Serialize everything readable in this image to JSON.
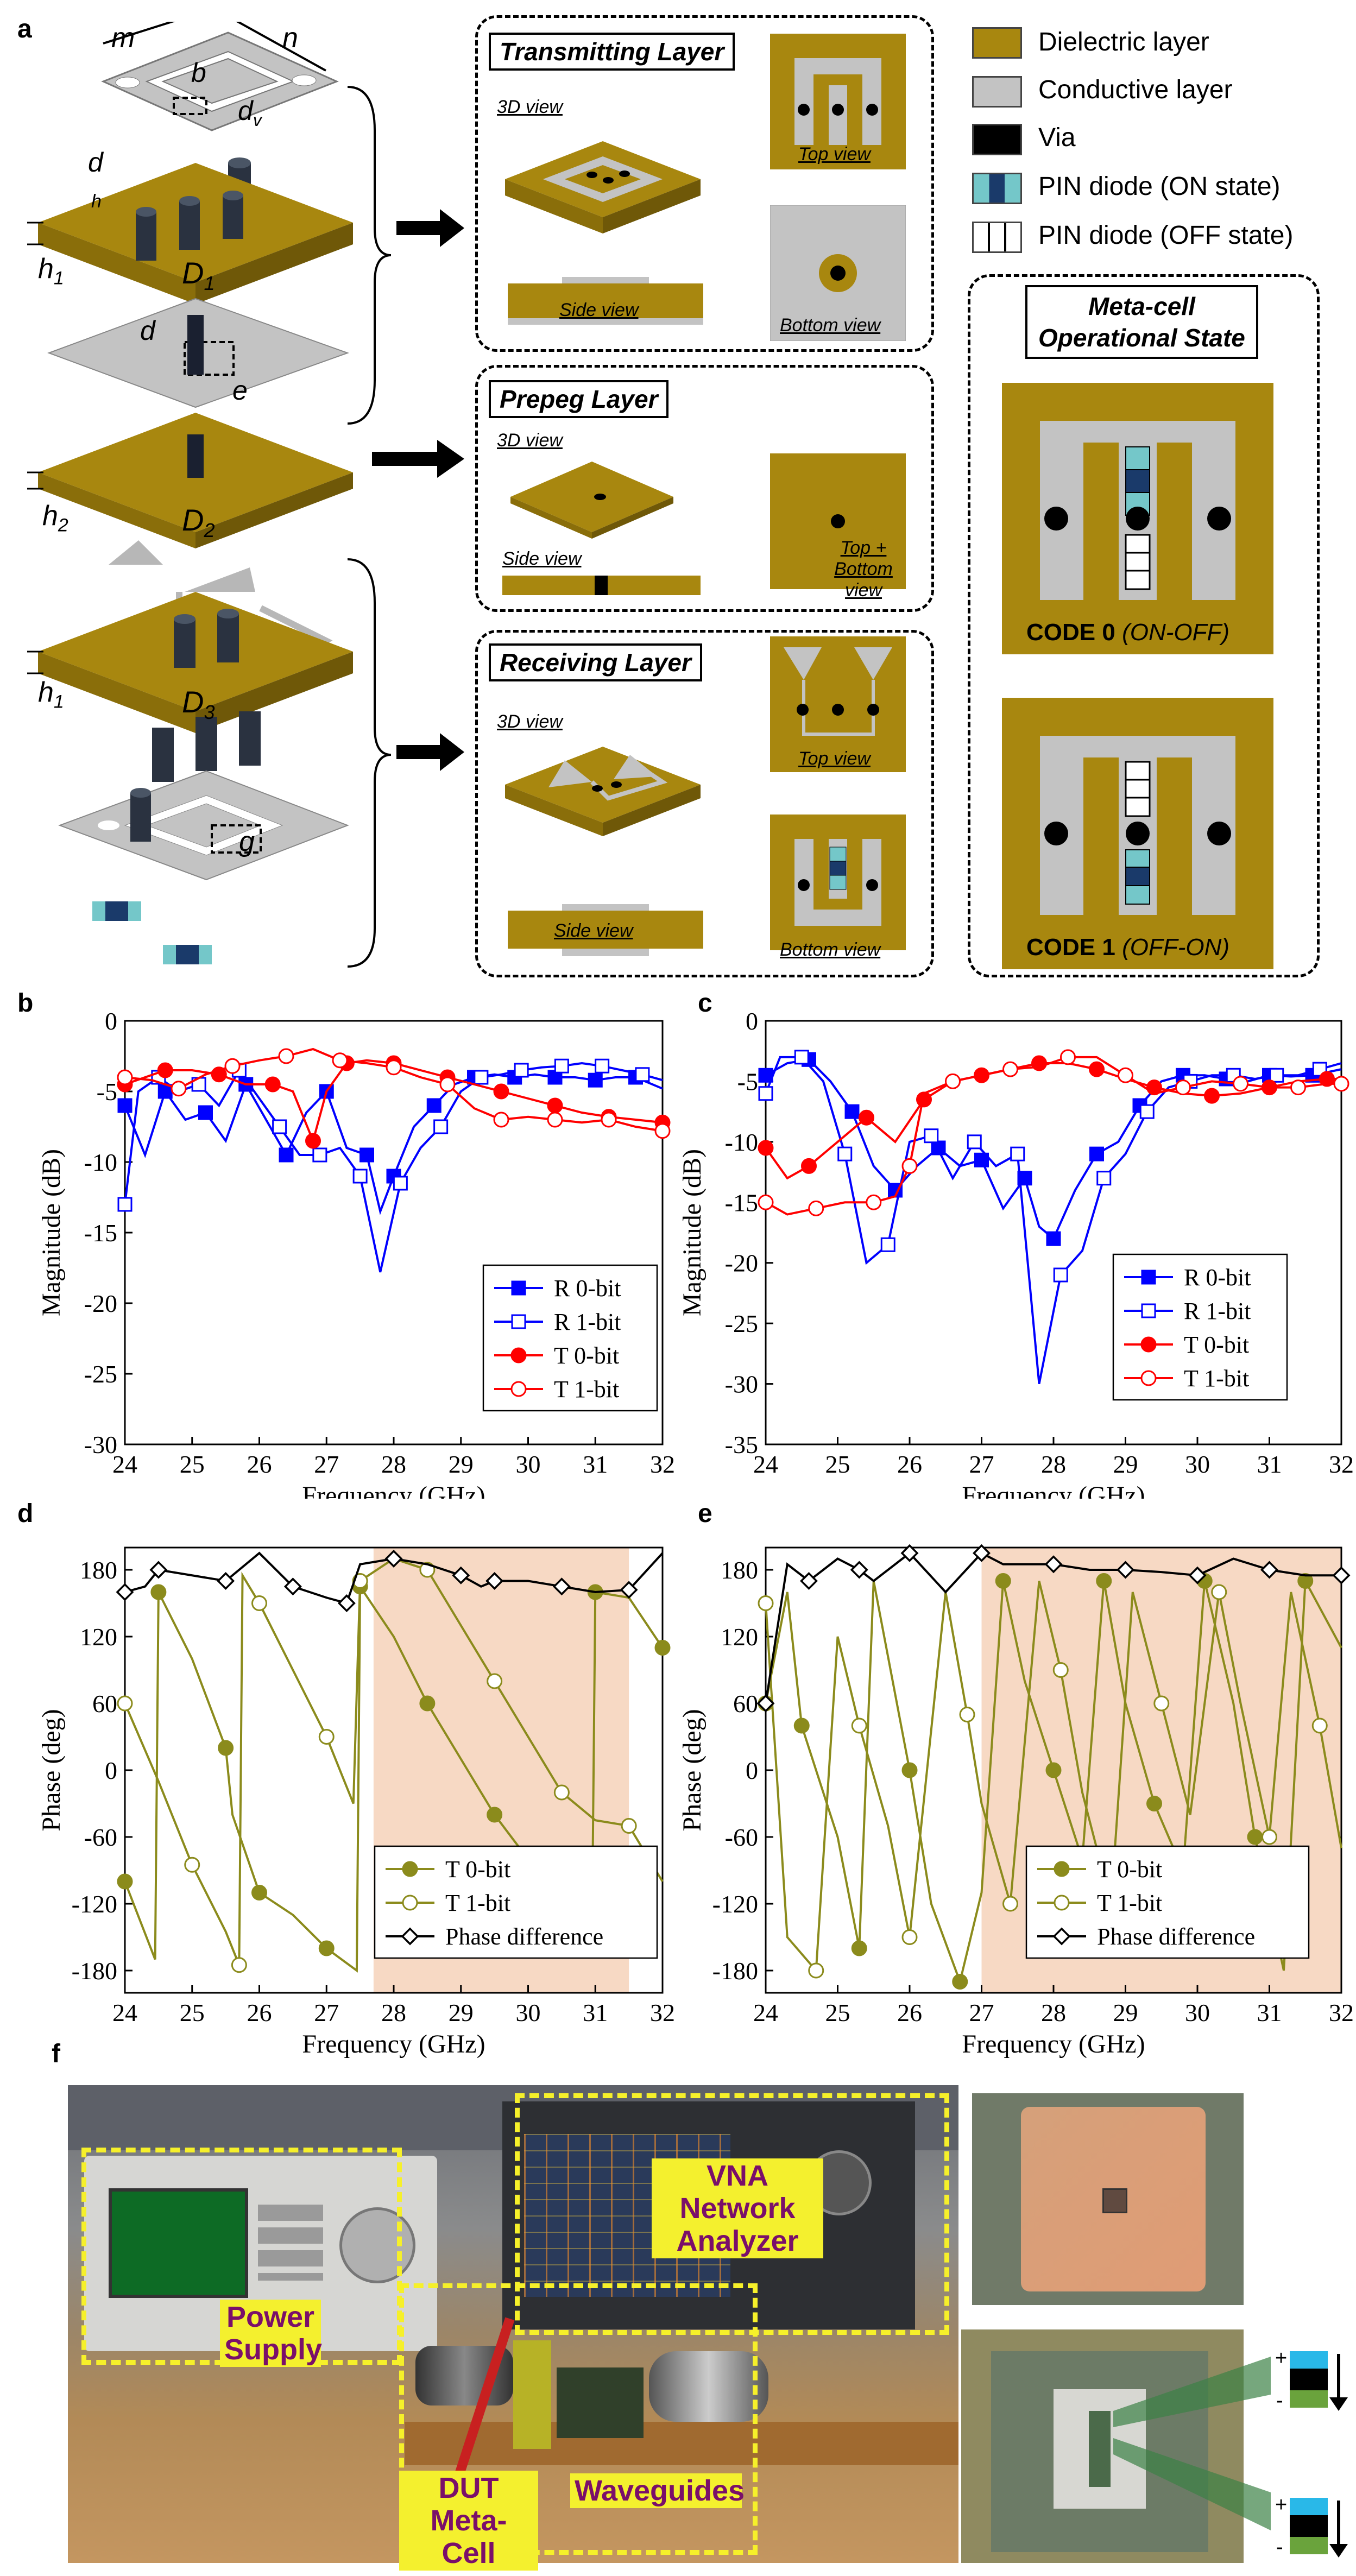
{
  "panel_labels": {
    "a": "a",
    "b": "b",
    "c": "c",
    "d": "d",
    "e": "e",
    "f": "f"
  },
  "colors": {
    "dielectric": "#a8870f",
    "conductive": "#c0c0c0",
    "via": "#000000",
    "diode_on": "#74c7c9",
    "diode_on_mid": "#1a3a6a",
    "red": "#ff0000",
    "blue": "#0000ff",
    "olive": "#8b8b1c",
    "shade": "#f7d9c4",
    "yellow": "#f6f02a",
    "magenta": "#7a0f6a"
  },
  "stack": {
    "dims": {
      "m": "m",
      "n": "n",
      "b": "b",
      "dv": "d",
      "dv_sub": "v",
      "d1": "d",
      "h": "h",
      "h1_top": "h",
      "h1_top_sub": "1",
      "D1": "D",
      "D1_sub": "1",
      "d2": "d",
      "e": "e",
      "h2": "h",
      "h2_sub": "2",
      "D2": "D",
      "D2_sub": "2",
      "h1_bot": "h",
      "h1_bot_sub": "1",
      "D3": "D",
      "D3_sub": "3",
      "g": "g"
    }
  },
  "views": {
    "transmitting": {
      "title": "Transmitting Layer",
      "v3d": "3D view",
      "top": "Top view",
      "side": "Side view",
      "bottom": "Bottom view"
    },
    "prepeg": {
      "title": "Prepeg Layer",
      "v3d": "3D view",
      "side": "Side view",
      "topbottom": "Top + Bottom view"
    },
    "receiving": {
      "title": "Receiving Layer",
      "v3d": "3D view",
      "top": "Top view",
      "side": "Side view",
      "bottom": "Bottom view"
    }
  },
  "legend": [
    {
      "label": "Dielectric layer"
    },
    {
      "label": "Conductive layer"
    },
    {
      "label": "Via"
    },
    {
      "label": "PIN diode (ON state)"
    },
    {
      "label": "PIN diode (OFF state)"
    }
  ],
  "metacell": {
    "title1": "Meta-cell",
    "title2": "Operational State",
    "code0": "CODE 0",
    "code0_state": "(ON-OFF)",
    "code1": "CODE 1",
    "code1_state": "(OFF-ON)"
  },
  "photo": {
    "power": "Power Supply",
    "vna": "VNA Network Analyzer",
    "dut": "DUT Meta-Cell",
    "waveguides": "Waveguides",
    "plus1": "+",
    "minus1": "-",
    "plus2": "+",
    "minus2": "-"
  },
  "chart_data": [
    {
      "id": "b",
      "type": "line",
      "xlabel": "Frequency (GHz)",
      "ylabel": "Magnitude (dB)",
      "xlim": [
        24,
        32
      ],
      "ylim": [
        -30,
        0
      ],
      "xticks": [
        24,
        25,
        26,
        27,
        28,
        29,
        30,
        31,
        32
      ],
      "yticks": [
        0,
        -5,
        -10,
        -15,
        -20,
        -25,
        -30
      ],
      "legend": "bottom-right",
      "series": [
        {
          "name": "R 0-bit",
          "color": "#0000ff",
          "marker": "square-filled",
          "x": [
            24,
            24.3,
            24.6,
            24.9,
            25.2,
            25.5,
            25.8,
            26.1,
            26.4,
            26.7,
            27,
            27.3,
            27.6,
            27.8,
            28,
            28.3,
            28.6,
            28.9,
            29.2,
            29.5,
            29.8,
            30.1,
            30.4,
            30.7,
            31,
            31.3,
            31.6,
            32
          ],
          "y": [
            -6,
            -9.5,
            -5,
            -7,
            -6.5,
            -8.5,
            -4.5,
            -7,
            -9.5,
            -6.5,
            -5,
            -9,
            -9.5,
            -13.5,
            -11,
            -7.5,
            -6,
            -4.5,
            -4,
            -3.8,
            -4,
            -3.8,
            -4,
            -4,
            -4.2,
            -4,
            -4,
            -4.8
          ]
        },
        {
          "name": "R 1-bit",
          "color": "#0000ff",
          "marker": "square-open",
          "x": [
            24,
            24.2,
            24.5,
            24.8,
            25.1,
            25.4,
            25.7,
            26,
            26.3,
            26.6,
            26.9,
            27.2,
            27.5,
            27.8,
            28.1,
            28.4,
            28.7,
            29,
            29.3,
            29.6,
            29.9,
            30.2,
            30.5,
            30.8,
            31.1,
            31.4,
            31.7,
            32
          ],
          "y": [
            -13,
            -5,
            -4,
            -5,
            -4.5,
            -6,
            -3.5,
            -5.5,
            -7.5,
            -9.5,
            -9.5,
            -9,
            -11,
            -17.8,
            -11.5,
            -9,
            -7.5,
            -5,
            -4,
            -3.8,
            -3.5,
            -3.3,
            -3.2,
            -3,
            -3.2,
            -3.5,
            -3.8,
            -4.2
          ]
        },
        {
          "name": "T 0-bit",
          "color": "#ff0000",
          "marker": "circle-filled",
          "x": [
            24,
            24.3,
            24.6,
            25,
            25.4,
            25.8,
            26.2,
            26.5,
            26.8,
            27,
            27.3,
            27.6,
            28,
            28.4,
            28.8,
            29.2,
            29.6,
            30,
            30.4,
            30.8,
            31.2,
            31.6,
            32
          ],
          "y": [
            -4.5,
            -4,
            -3.5,
            -3.5,
            -3.8,
            -4.5,
            -4.5,
            -5,
            -8.5,
            -5,
            -3,
            -2.8,
            -3,
            -3.5,
            -4,
            -4.5,
            -5,
            -5.5,
            -6,
            -6.5,
            -6.8,
            -7,
            -7.2
          ]
        },
        {
          "name": "T 1-bit",
          "color": "#ff0000",
          "marker": "circle-open",
          "x": [
            24,
            24.4,
            24.8,
            25.2,
            25.6,
            26,
            26.4,
            26.8,
            27.2,
            27.6,
            28,
            28.4,
            28.8,
            29.2,
            29.6,
            30,
            30.4,
            30.8,
            31.2,
            31.6,
            32
          ],
          "y": [
            -4,
            -4.2,
            -4.8,
            -3.8,
            -3.2,
            -2.8,
            -2.5,
            -2,
            -2.8,
            -3,
            -3.3,
            -4,
            -4.5,
            -6.2,
            -7,
            -6.8,
            -7,
            -7.2,
            -7,
            -7.5,
            -7.8
          ]
        }
      ]
    },
    {
      "id": "c",
      "type": "line",
      "xlabel": "Frequency (GHz)",
      "ylabel": "Magnitude (dB)",
      "xlim": [
        24,
        32
      ],
      "ylim": [
        -35,
        0
      ],
      "xticks": [
        24,
        25,
        26,
        27,
        28,
        29,
        30,
        31,
        32
      ],
      "yticks": [
        0,
        -5,
        -10,
        -15,
        -20,
        -25,
        -30,
        -35
      ],
      "legend": "bottom-right",
      "series": [
        {
          "name": "R 0-bit",
          "color": "#0000ff",
          "marker": "square-filled",
          "x": [
            24,
            24.3,
            24.6,
            24.9,
            25.2,
            25.5,
            25.8,
            26.1,
            26.4,
            26.7,
            27,
            27.3,
            27.6,
            27.8,
            28,
            28.3,
            28.6,
            28.9,
            29.2,
            29.5,
            29.8,
            30.1,
            30.4,
            30.7,
            31,
            31.3,
            31.6,
            32
          ],
          "y": [
            -4.5,
            -3.5,
            -3.2,
            -5,
            -7.5,
            -12,
            -14,
            -12,
            -10.5,
            -12,
            -11.5,
            -15.5,
            -13,
            -17,
            -18,
            -14,
            -11,
            -10,
            -7,
            -5,
            -4.5,
            -4.5,
            -4.8,
            -5,
            -4.5,
            -4.6,
            -4.5,
            -4
          ]
        },
        {
          "name": "R 1-bit",
          "color": "#0000ff",
          "marker": "square-open",
          "x": [
            24,
            24.2,
            24.5,
            24.8,
            25.1,
            25.4,
            25.7,
            26,
            26.3,
            26.6,
            26.9,
            27.2,
            27.5,
            27.8,
            28.1,
            28.4,
            28.7,
            29,
            29.3,
            29.6,
            29.9,
            30.2,
            30.5,
            30.8,
            31.1,
            31.4,
            31.7,
            32
          ],
          "y": [
            -6,
            -3,
            -3,
            -5,
            -11,
            -20,
            -18.5,
            -10,
            -9.5,
            -13,
            -10,
            -12,
            -11,
            -30,
            -21,
            -19,
            -13,
            -11,
            -7.5,
            -5.5,
            -5,
            -4.5,
            -4.5,
            -4.8,
            -4.5,
            -4.5,
            -4,
            -3.5
          ]
        },
        {
          "name": "T 0-bit",
          "color": "#ff0000",
          "marker": "circle-filled",
          "x": [
            24,
            24.3,
            24.6,
            25,
            25.4,
            25.8,
            26.2,
            26.6,
            27,
            27.4,
            27.8,
            28.2,
            28.6,
            29,
            29.4,
            29.8,
            30.2,
            30.6,
            31,
            31.4,
            31.8,
            32
          ],
          "y": [
            -10.5,
            -13,
            -12,
            -10,
            -8,
            -10,
            -6.5,
            -5,
            -4.5,
            -4,
            -3.5,
            -3.5,
            -4,
            -4.8,
            -5.5,
            -6,
            -6.2,
            -6,
            -5.5,
            -5,
            -4.8,
            -4.8
          ]
        },
        {
          "name": "T 1-bit",
          "color": "#ff0000",
          "marker": "circle-open",
          "x": [
            24,
            24.3,
            24.7,
            25.1,
            25.5,
            25.8,
            26,
            26.2,
            26.6,
            27,
            27.4,
            27.8,
            28.2,
            28.6,
            29,
            29.4,
            29.8,
            30.2,
            30.6,
            31,
            31.4,
            31.8,
            32
          ],
          "y": [
            -15,
            -16,
            -15.5,
            -15,
            -15,
            -14.5,
            -12,
            -6,
            -5,
            -4.5,
            -4,
            -3.8,
            -3,
            -3,
            -4.5,
            -6,
            -5.5,
            -5,
            -5.2,
            -5.5,
            -5.5,
            -5.2,
            -5.2
          ]
        }
      ]
    },
    {
      "id": "d",
      "type": "line",
      "xlabel": "Frequency (GHz)",
      "ylabel": "Phase (deg)",
      "xlim": [
        24,
        32
      ],
      "ylim": [
        -200,
        200
      ],
      "xticks": [
        24,
        25,
        26,
        27,
        28,
        29,
        30,
        31,
        32
      ],
      "yticks": [
        180,
        120,
        60,
        0,
        -60,
        -120,
        -180
      ],
      "shaded_x": [
        27.7,
        31.5
      ],
      "legend": "bottom-right",
      "series": [
        {
          "name": "T 0-bit",
          "color": "#8b8b1c",
          "marker": "circle-filled",
          "x": [
            24,
            24.45,
            24.5,
            25,
            25.5,
            25.6,
            26,
            26.5,
            27,
            27.45,
            27.5,
            28,
            28.5,
            29,
            29.5,
            30,
            30.5,
            30.95,
            31,
            31.5,
            32
          ],
          "y": [
            -100,
            -170,
            160,
            100,
            20,
            -40,
            -110,
            -130,
            -160,
            -180,
            165,
            120,
            60,
            10,
            -40,
            -80,
            -110,
            -150,
            160,
            155,
            110
          ]
        },
        {
          "name": "T 1-bit",
          "color": "#8b8b1c",
          "marker": "circle-open",
          "x": [
            24,
            24.5,
            25,
            25.5,
            25.7,
            25.75,
            26,
            26.5,
            27,
            27.4,
            27.5,
            28,
            28.5,
            29,
            29.5,
            30,
            30.5,
            31,
            31.5,
            32
          ],
          "y": [
            60,
            -10,
            -85,
            -145,
            -175,
            175,
            150,
            90,
            30,
            -30,
            170,
            190,
            180,
            130,
            80,
            30,
            -20,
            -45,
            -50,
            -100
          ]
        },
        {
          "name": "Phase difference",
          "color": "#000000",
          "marker": "diamond-open",
          "x": [
            24,
            24.3,
            24.5,
            25,
            25.5,
            26,
            26.5,
            27,
            27.3,
            27.5,
            28,
            28.5,
            29,
            29.3,
            29.5,
            30,
            30.5,
            31,
            31.5,
            32
          ],
          "y": [
            160,
            165,
            180,
            175,
            170,
            195,
            165,
            155,
            150,
            185,
            190,
            185,
            175,
            165,
            170,
            170,
            165,
            160,
            162,
            195
          ]
        }
      ]
    },
    {
      "id": "e",
      "type": "line",
      "xlabel": "Frequency (GHz)",
      "ylabel": "Phase (deg)",
      "xlim": [
        24,
        32
      ],
      "ylim": [
        -200,
        200
      ],
      "xticks": [
        24,
        25,
        26,
        27,
        28,
        29,
        30,
        31,
        32
      ],
      "yticks": [
        180,
        120,
        60,
        0,
        -60,
        -120,
        -180
      ],
      "shaded_x": [
        27,
        32
      ],
      "legend": "bottom-right",
      "series": [
        {
          "name": "T 0-bit",
          "color": "#8b8b1c",
          "marker": "circle-filled",
          "x": [
            24,
            24.3,
            24.5,
            25,
            25.3,
            25.5,
            26,
            26.3,
            26.7,
            27,
            27.3,
            27.6,
            28,
            28.4,
            28.7,
            29,
            29.4,
            29.8,
            30.1,
            30.5,
            30.8,
            31.2,
            31.5,
            32
          ],
          "y": [
            60,
            160,
            40,
            -60,
            -160,
            170,
            0,
            -120,
            -190,
            -110,
            170,
            80,
            0,
            -80,
            170,
            60,
            -30,
            -90,
            170,
            60,
            -60,
            -180,
            170,
            110
          ]
        },
        {
          "name": "T 1-bit",
          "color": "#8b8b1c",
          "marker": "circle-open",
          "x": [
            24,
            24.3,
            24.7,
            25,
            25.3,
            25.7,
            26,
            26.5,
            26.8,
            27,
            27.4,
            27.8,
            28.1,
            28.4,
            28.8,
            29.1,
            29.5,
            29.9,
            30.3,
            30.6,
            31,
            31.3,
            31.7,
            32
          ],
          "y": [
            150,
            -150,
            -180,
            120,
            40,
            -50,
            -150,
            160,
            50,
            -30,
            -120,
            170,
            90,
            -20,
            -120,
            160,
            60,
            -40,
            160,
            60,
            -60,
            160,
            40,
            -70
          ]
        },
        {
          "name": "Phase difference",
          "color": "#000000",
          "marker": "diamond-open",
          "x": [
            24,
            24.3,
            24.6,
            25,
            25.3,
            25.5,
            26,
            26.5,
            27,
            27.3,
            28,
            28.5,
            29,
            29.5,
            30,
            30.5,
            31,
            31.5,
            32
          ],
          "y": [
            60,
            185,
            170,
            190,
            180,
            170,
            195,
            160,
            195,
            185,
            185,
            180,
            180,
            178,
            175,
            190,
            180,
            175,
            175
          ]
        }
      ]
    }
  ]
}
